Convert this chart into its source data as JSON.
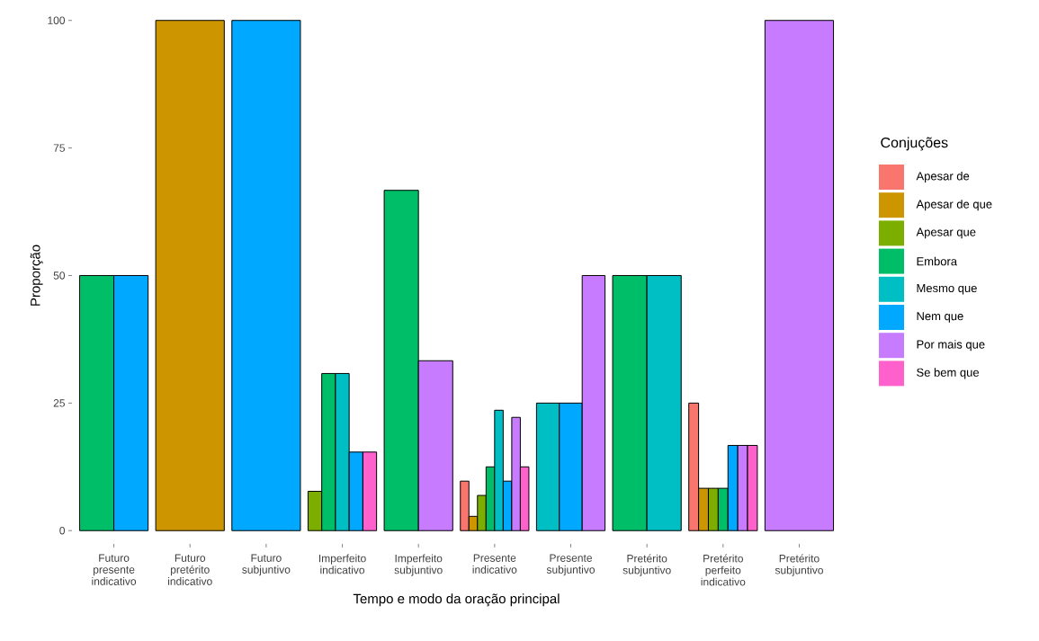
{
  "chart_data": {
    "type": "bar",
    "xlabel": "Tempo e modo da oração principal",
    "ylabel": "Proporção",
    "legend_title": "Conjuções",
    "legend": "right",
    "categories": [
      "Futuro presente indicativo",
      "Futuro pretérito indicativo",
      "Futuro subjuntivo",
      "Imperfeito indicativo",
      "Imperfeito subjuntivo",
      "Presente indicativo",
      "Presente subjuntivo",
      "Pretérito subjuntivo",
      "Pretérito perfeito indicativo",
      "Pretérito subjuntivo"
    ],
    "ylim": [
      0,
      100
    ],
    "yticks": [
      0,
      25,
      50,
      75,
      100
    ],
    "series": [
      {
        "name": "Apesar de",
        "color": "#f8766d",
        "values": [
          null,
          null,
          null,
          null,
          null,
          9.7,
          null,
          null,
          25,
          null
        ]
      },
      {
        "name": "Apesar de que",
        "color": "#cd9600",
        "values": [
          null,
          100,
          null,
          null,
          null,
          2.8,
          null,
          null,
          8.3,
          null
        ]
      },
      {
        "name": "Apesar que",
        "color": "#7cae00",
        "values": [
          null,
          null,
          null,
          7.7,
          null,
          6.9,
          null,
          null,
          8.3,
          null
        ]
      },
      {
        "name": "Embora",
        "color": "#00be67",
        "values": [
          50,
          null,
          null,
          30.8,
          66.7,
          12.5,
          null,
          50,
          8.3,
          null
        ]
      },
      {
        "name": "Mesmo que",
        "color": "#00bfc4",
        "values": [
          null,
          null,
          null,
          30.8,
          null,
          23.6,
          25,
          50,
          null,
          null
        ]
      },
      {
        "name": "Nem que",
        "color": "#00a9ff",
        "values": [
          50,
          null,
          100,
          15.4,
          null,
          9.7,
          25,
          null,
          16.7,
          null
        ]
      },
      {
        "name": "Por mais que",
        "color": "#c77cff",
        "values": [
          null,
          null,
          null,
          null,
          33.3,
          22.2,
          50,
          null,
          16.7,
          100
        ]
      },
      {
        "name": "Se bem que",
        "color": "#ff61cc",
        "values": [
          null,
          null,
          null,
          15.4,
          null,
          12.5,
          null,
          null,
          16.7,
          null
        ]
      }
    ]
  }
}
